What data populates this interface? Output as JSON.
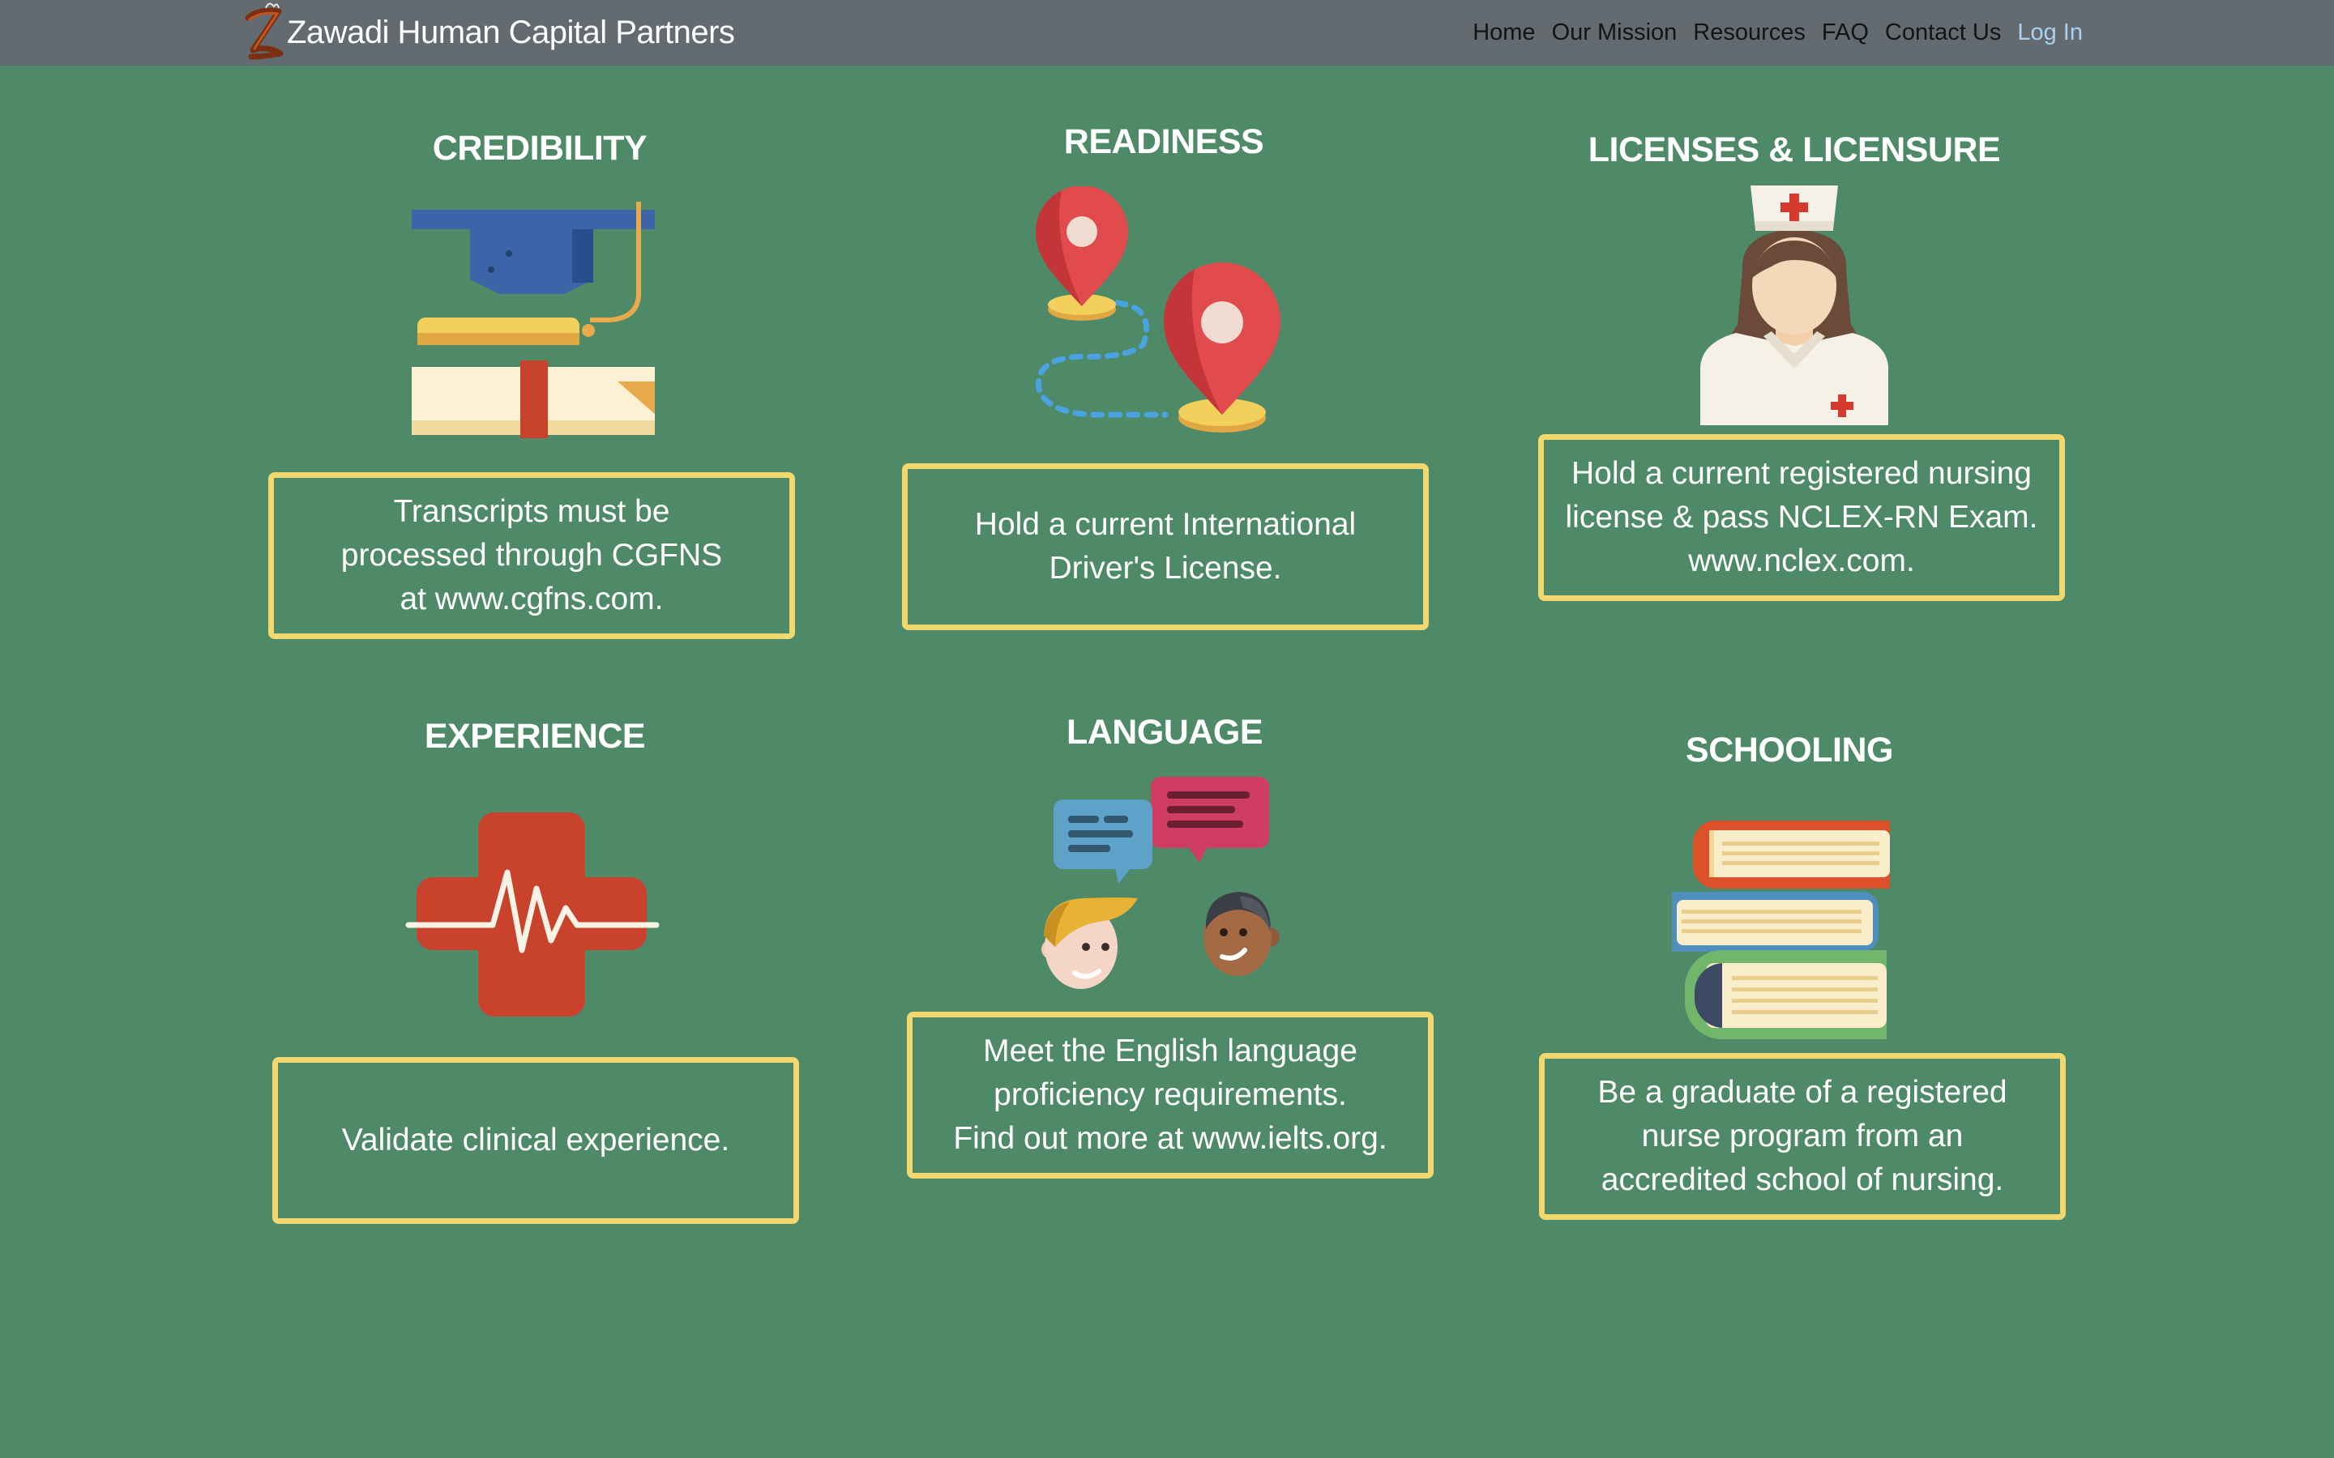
{
  "header": {
    "brand": "Zawadi Human Capital Partners",
    "logo_icon": "z-swirl-logo-icon",
    "nav": [
      {
        "label": "Home"
      },
      {
        "label": "Our Mission"
      },
      {
        "label": "Resources"
      },
      {
        "label": "FAQ"
      },
      {
        "label": "Contact Us"
      },
      {
        "label": "Log In"
      }
    ]
  },
  "cards": [
    {
      "title": "CREDIBILITY",
      "icon": "graduation-cap-diploma-icon",
      "text": "Transcripts must be\nprocessed through CGFNS\nat www.cgfns.com."
    },
    {
      "title": "READINESS",
      "icon": "map-route-pins-icon",
      "text": "Hold a current International\nDriver's License."
    },
    {
      "title": "LICENSES & LICENSURE",
      "icon": "nurse-icon",
      "text": "Hold a current registered nursing\nlicense & pass NCLEX-RN Exam.\nwww.nclex.com."
    },
    {
      "title": "EXPERIENCE",
      "icon": "medical-cross-heartbeat-icon",
      "text": "Validate clinical experience."
    },
    {
      "title": "LANGUAGE",
      "icon": "people-conversation-icon",
      "text": "Meet the English language\nproficiency requirements.\nFind out more at www.ielts.org."
    },
    {
      "title": "SCHOOLING",
      "icon": "book-stack-icon",
      "text": "Be a graduate of a registered\nnurse program from an\naccredited school of nursing."
    }
  ],
  "colors": {
    "background": "#4e8a67",
    "topbar": "#646b70",
    "box_border": "#f2d86e",
    "login_link": "#a9d1f0"
  }
}
